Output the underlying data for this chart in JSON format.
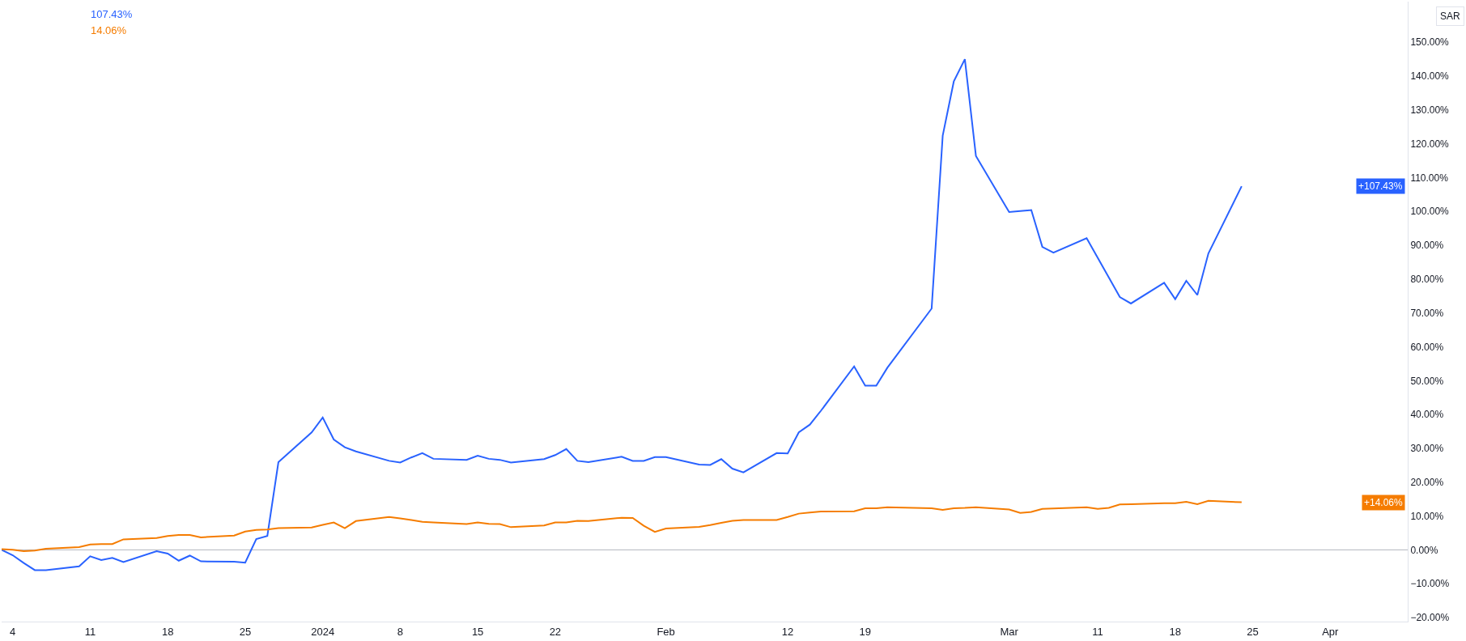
{
  "chart_data": {
    "type": "line",
    "x": [
      "2023-12-03",
      "2023-12-04",
      "2023-12-05",
      "2023-12-06",
      "2023-12-07",
      "2023-12-10",
      "2023-12-11",
      "2023-12-12",
      "2023-12-13",
      "2023-12-14",
      "2023-12-17",
      "2023-12-18",
      "2023-12-19",
      "2023-12-20",
      "2023-12-21",
      "2023-12-24",
      "2023-12-25",
      "2023-12-26",
      "2023-12-27",
      "2023-12-28",
      "2023-12-31",
      "2024-01-01",
      "2024-01-02",
      "2024-01-03",
      "2024-01-04",
      "2024-01-07",
      "2024-01-08",
      "2024-01-09",
      "2024-01-10",
      "2024-01-11",
      "2024-01-14",
      "2024-01-15",
      "2024-01-16",
      "2024-01-17",
      "2024-01-18",
      "2024-01-21",
      "2024-01-22",
      "2024-01-23",
      "2024-01-24",
      "2024-01-25",
      "2024-01-28",
      "2024-01-29",
      "2024-01-30",
      "2024-01-31",
      "2024-02-01",
      "2024-02-04",
      "2024-02-05",
      "2024-02-06",
      "2024-02-07",
      "2024-02-08",
      "2024-02-11",
      "2024-02-12",
      "2024-02-13",
      "2024-02-14",
      "2024-02-15",
      "2024-02-18",
      "2024-02-19",
      "2024-02-20",
      "2024-02-21",
      "2024-02-25",
      "2024-02-26",
      "2024-02-27",
      "2024-02-28",
      "2024-02-29",
      "2024-03-03",
      "2024-03-04",
      "2024-03-05",
      "2024-03-06",
      "2024-03-07",
      "2024-03-10",
      "2024-03-11",
      "2024-03-12",
      "2024-03-13",
      "2024-03-14",
      "2024-03-17",
      "2024-03-18",
      "2024-03-19",
      "2024-03-20",
      "2024-03-21",
      "2024-03-24"
    ],
    "series": [
      {
        "color": "#2962ff",
        "values": [
          0,
          -1.6,
          -3.9,
          -6.0,
          -6.0,
          -4.9,
          -1.9,
          -3.0,
          -2.4,
          -3.6,
          -0.4,
          -1.1,
          -3.2,
          -1.7,
          -3.4,
          -3.5,
          -3.8,
          3.2,
          4.1,
          25.9,
          34.7,
          39.1,
          32.6,
          30.3,
          29.1,
          26.3,
          25.8,
          27.3,
          28.6,
          26.9,
          26.6,
          27.8,
          26.9,
          26.6,
          25.8,
          26.8,
          28.0,
          29.8,
          26.3,
          25.9,
          27.5,
          26.3,
          26.3,
          27.4,
          27.4,
          25.2,
          25.1,
          26.8,
          24.0,
          22.9,
          28.6,
          28.5,
          34.7,
          37.0,
          41.1,
          54.2,
          48.5,
          48.5,
          53.8,
          71.3,
          122.4,
          138.4,
          145.0,
          116.4,
          99.8,
          100.1,
          100.4,
          89.5,
          87.8,
          92.1,
          86.3,
          80.5,
          74.7,
          72.8,
          78.9,
          74.1,
          79.5,
          75.3,
          87.6,
          107.43
        ]
      },
      {
        "color": "#f57c00",
        "values": [
          0.2,
          0,
          -0.4,
          -0.2,
          0.3,
          0.8,
          1.6,
          1.7,
          1.7,
          3.1,
          3.5,
          4.1,
          4.4,
          4.4,
          3.7,
          4.2,
          5.4,
          5.9,
          6.0,
          6.4,
          6.6,
          7.4,
          8.1,
          6.4,
          8.5,
          9.7,
          9.3,
          8.8,
          8.3,
          8.1,
          7.6,
          8.1,
          7.7,
          7.6,
          6.7,
          7.2,
          8.1,
          8.1,
          8.6,
          8.5,
          9.5,
          9.4,
          7.1,
          5.3,
          6.3,
          6.8,
          7.3,
          8.0,
          8.6,
          8.8,
          8.8,
          9.7,
          10.7,
          11.0,
          11.3,
          11.4,
          12.3,
          12.3,
          12.6,
          12.3,
          11.8,
          12.3,
          12.4,
          12.6,
          11.9,
          10.9,
          11.2,
          12.1,
          12.2,
          12.6,
          12.1,
          12.4,
          13.4,
          13.5,
          13.8,
          13.8,
          14.2,
          13.5,
          14.5,
          14.06
        ]
      }
    ],
    "xlim": [
      "2023-12-03",
      "2024-04-08"
    ],
    "xticks": [
      {
        "value": "2023-12-04",
        "label": "4"
      },
      {
        "value": "2023-12-11",
        "label": "11"
      },
      {
        "value": "2023-12-18",
        "label": "18"
      },
      {
        "value": "2023-12-25",
        "label": "25"
      },
      {
        "value": "2024-01-01",
        "label": "2024"
      },
      {
        "value": "2024-01-08",
        "label": "8"
      },
      {
        "value": "2024-01-15",
        "label": "15"
      },
      {
        "value": "2024-01-22",
        "label": "22"
      },
      {
        "value": "2024-02-01",
        "label": "Feb"
      },
      {
        "value": "2024-02-12",
        "label": "12"
      },
      {
        "value": "2024-02-19",
        "label": "19"
      },
      {
        "value": "2024-03-03",
        "label": "Mar"
      },
      {
        "value": "2024-03-11",
        "label": "11"
      },
      {
        "value": "2024-03-18",
        "label": "18"
      },
      {
        "value": "2024-03-25",
        "label": "25"
      },
      {
        "value": "2024-04-01",
        "label": "Apr"
      }
    ],
    "ylim": [
      -21.2,
      162
    ],
    "yticks": [
      {
        "value": -20,
        "label": "−20.00%"
      },
      {
        "value": -10,
        "label": "−10.00%"
      },
      {
        "value": 0,
        "label": "0.00%"
      },
      {
        "value": 10,
        "label": "10.00%"
      },
      {
        "value": 20,
        "label": "20.00%"
      },
      {
        "value": 30,
        "label": "30.00%"
      },
      {
        "value": 40,
        "label": "40.00%"
      },
      {
        "value": 50,
        "label": "50.00%"
      },
      {
        "value": 60,
        "label": "60.00%"
      },
      {
        "value": 70,
        "label": "70.00%"
      },
      {
        "value": 80,
        "label": "80.00%"
      },
      {
        "value": 90,
        "label": "90.00%"
      },
      {
        "value": 100,
        "label": "100.00%"
      },
      {
        "value": 110,
        "label": "110.00%"
      },
      {
        "value": 120,
        "label": "120.00%"
      },
      {
        "value": 130,
        "label": "130.00%"
      },
      {
        "value": 140,
        "label": "140.00%"
      },
      {
        "value": 150,
        "label": "150.00%"
      }
    ],
    "ref_lines": [
      {
        "axis": "y",
        "value": 0,
        "color": "#b2b5be"
      }
    ],
    "annotations": [
      "107.43%",
      "14.06%",
      "SAR",
      "+107.43%",
      "+14.06%"
    ],
    "grid": false,
    "marker": "none",
    "line_style": "solid"
  }
}
